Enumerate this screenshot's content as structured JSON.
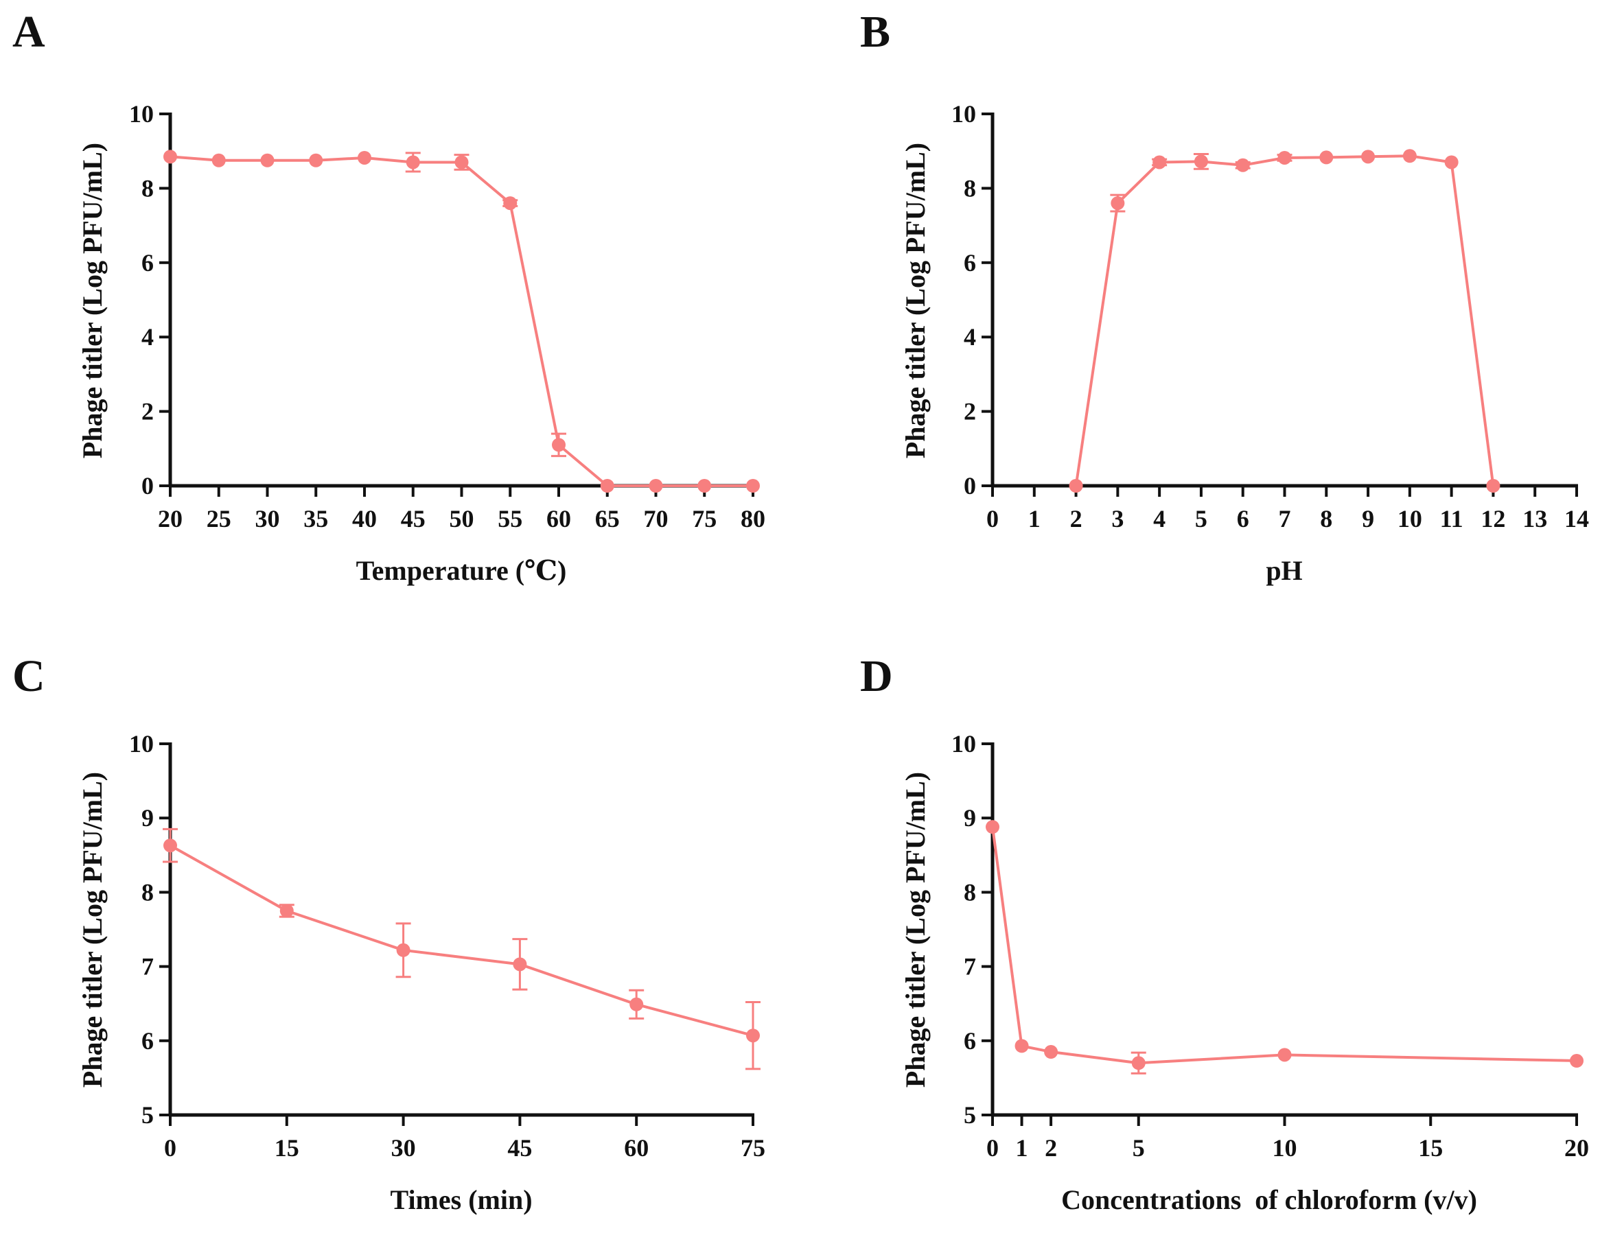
{
  "figure": {
    "accent_color": "#f77f7f",
    "axis_color": "#111111"
  },
  "chart_data": [
    {
      "panel": "A",
      "type": "line",
      "title": "",
      "xlabel": "Temperature (℃)",
      "ylabel": "Phage titler (Log PFU/mL)",
      "xlim": [
        20,
        80
      ],
      "ylim": [
        0,
        10
      ],
      "x_ticks": [
        "20",
        "25",
        "30",
        "35",
        "40",
        "45",
        "50",
        "55",
        "60",
        "65",
        "70",
        "75",
        "80"
      ],
      "y_ticks": [
        "0",
        "2",
        "4",
        "6",
        "8",
        "10"
      ],
      "series": [
        {
          "name": "Phage titler",
          "x": [
            20,
            25,
            30,
            35,
            40,
            45,
            50,
            55,
            60,
            65,
            70,
            75,
            80
          ],
          "y": [
            8.85,
            8.75,
            8.75,
            8.75,
            8.82,
            8.7,
            8.7,
            7.6,
            1.1,
            0,
            0,
            0,
            0
          ],
          "error": [
            0.05,
            0.05,
            0.05,
            0.05,
            0.05,
            0.25,
            0.2,
            0.08,
            0.3,
            0.05,
            0.05,
            0.05,
            0.05
          ]
        }
      ]
    },
    {
      "panel": "B",
      "type": "line",
      "title": "",
      "xlabel": "pH",
      "ylabel": "Phage titler (Log PFU/mL)",
      "xlim": [
        0,
        14
      ],
      "ylim": [
        0,
        10
      ],
      "x_ticks": [
        "0",
        "1",
        "2",
        "3",
        "4",
        "5",
        "6",
        "7",
        "8",
        "9",
        "10",
        "11",
        "12",
        "13",
        "14"
      ],
      "y_ticks": [
        "0",
        "2",
        "4",
        "6",
        "8",
        "10"
      ],
      "series": [
        {
          "name": "Phage titler",
          "x": [
            2,
            3,
            4,
            5,
            6,
            7,
            8,
            9,
            10,
            11,
            12
          ],
          "y": [
            0,
            7.6,
            8.7,
            8.72,
            8.62,
            8.82,
            8.83,
            8.85,
            8.87,
            8.7,
            0
          ],
          "error": [
            0.05,
            0.22,
            0.08,
            0.2,
            0.08,
            0.08,
            0.06,
            0.06,
            0.06,
            0.06,
            0.05
          ]
        }
      ]
    },
    {
      "panel": "C",
      "type": "line",
      "title": "",
      "xlabel": "Times (min)",
      "ylabel": "Phage titler (Log PFU/mL)",
      "xlim": [
        0,
        75
      ],
      "ylim": [
        5,
        10
      ],
      "x_ticks": [
        "0",
        "15",
        "30",
        "45",
        "60",
        "75"
      ],
      "y_ticks": [
        "5",
        "6",
        "7",
        "8",
        "9",
        "10"
      ],
      "series": [
        {
          "name": "Phage titler",
          "x": [
            0,
            15,
            30,
            45,
            60,
            75
          ],
          "y": [
            8.63,
            7.75,
            7.22,
            7.03,
            6.49,
            6.07
          ],
          "error": [
            0.22,
            0.08,
            0.36,
            0.34,
            0.19,
            0.45
          ]
        }
      ]
    },
    {
      "panel": "D",
      "type": "line",
      "title": "",
      "xlabel": "Concentrations  of chloroform (v/v)",
      "ylabel": "Phage titler (Log PFU/mL)",
      "xlim": [
        0,
        20
      ],
      "ylim": [
        5,
        10
      ],
      "x_ticks": [
        "0",
        "1",
        "2",
        "5",
        "10",
        "15",
        "20"
      ],
      "y_ticks": [
        "5",
        "6",
        "7",
        "8",
        "9",
        "10"
      ],
      "series": [
        {
          "name": "Phage titler",
          "x": [
            0,
            1,
            2,
            5,
            10,
            20
          ],
          "y": [
            8.88,
            5.93,
            5.85,
            5.7,
            5.81,
            5.73
          ],
          "error": [
            0.05,
            0.05,
            0.05,
            0.14,
            0.05,
            0.05
          ]
        }
      ]
    }
  ]
}
